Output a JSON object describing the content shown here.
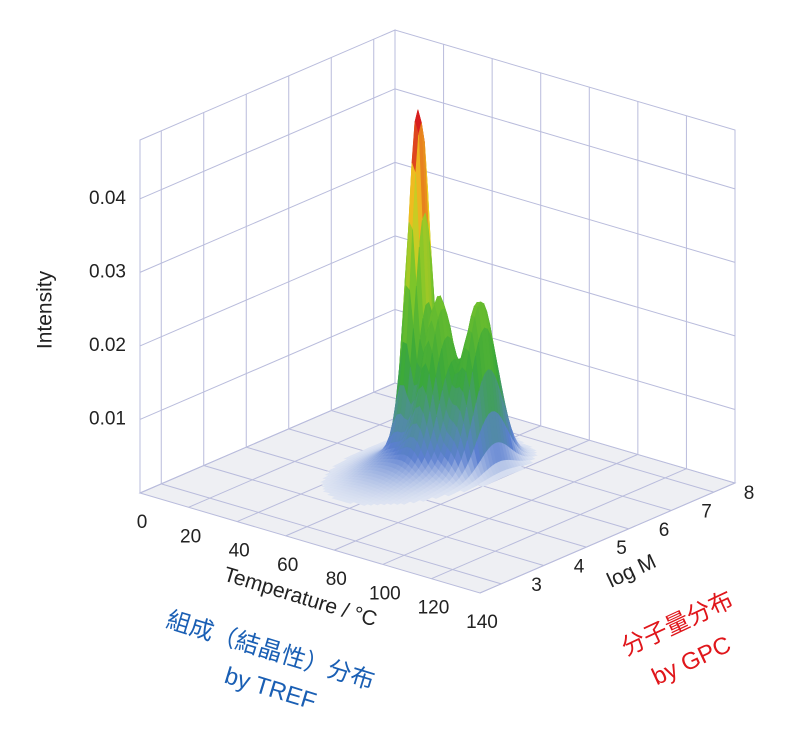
{
  "chart_data": {
    "type": "surface3d",
    "xlabel": "Temperature / °C",
    "ylabel": "log M",
    "zlabel": "Intensity",
    "xlim": [
      0,
      140
    ],
    "xticks": [
      0,
      20,
      40,
      60,
      80,
      100,
      120,
      140
    ],
    "ylim": [
      2.5,
      8.5
    ],
    "yticks": [
      3,
      4,
      5,
      6,
      7,
      8
    ],
    "zlim": [
      0,
      0.048
    ],
    "zticks": [
      0.01,
      0.02,
      0.03,
      0.04
    ],
    "grid": true,
    "peaks": {
      "x": [
        55,
        50,
        60,
        70
      ],
      "y": [
        6.0,
        6.2,
        6.1,
        6.5
      ],
      "values": [
        0.004,
        0.045,
        0.02,
        0.022
      ]
    },
    "annotations": [
      {
        "lines": [
          "組成（結晶性）分布",
          "by TREF"
        ],
        "color": "#1a5fb4"
      },
      {
        "lines": [
          "分子量分布",
          "by GPC"
        ],
        "color": "#e0161b"
      }
    ]
  }
}
